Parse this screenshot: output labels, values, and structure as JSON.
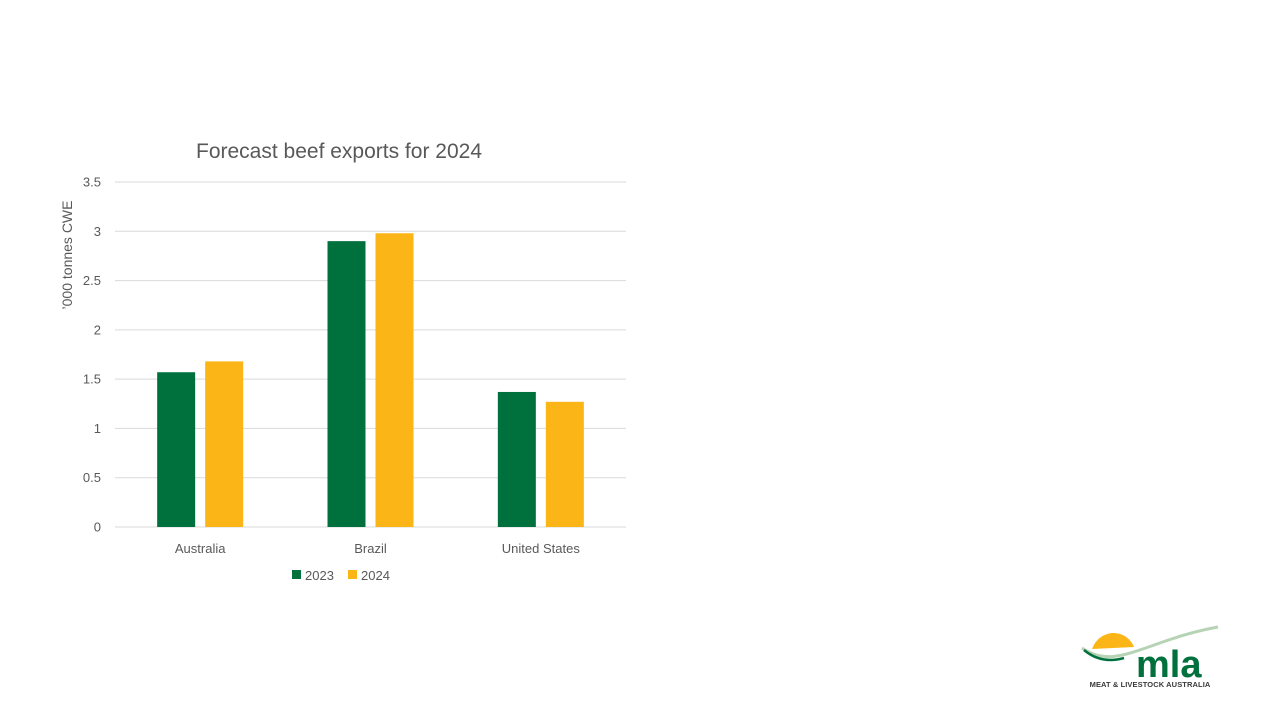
{
  "chart_data": {
    "type": "bar",
    "title": "Forecast beef exports for 2024",
    "xlabel": "",
    "ylabel": "’000 tonnes CWE",
    "categories": [
      "Australia",
      "Brazil",
      "United States"
    ],
    "series": [
      {
        "name": "2023",
        "color": "#00703c",
        "values": [
          1.57,
          2.9,
          1.37
        ]
      },
      {
        "name": "2024",
        "color": "#fbb516",
        "values": [
          1.68,
          2.98,
          1.27
        ]
      }
    ],
    "ylim": [
      0,
      3.5
    ],
    "yticks": [
      "0",
      "0.5",
      "1",
      "1.5",
      "2",
      "2.5",
      "3",
      "3.5"
    ],
    "grid": true,
    "legend": "bottom"
  },
  "logo": {
    "wordmark": "mla",
    "tagline": "MEAT & LIVESTOCK AUSTRALIA",
    "colors": {
      "green": "#00703c",
      "gold": "#fbb516",
      "swoosh": "#b7d3b5"
    }
  }
}
